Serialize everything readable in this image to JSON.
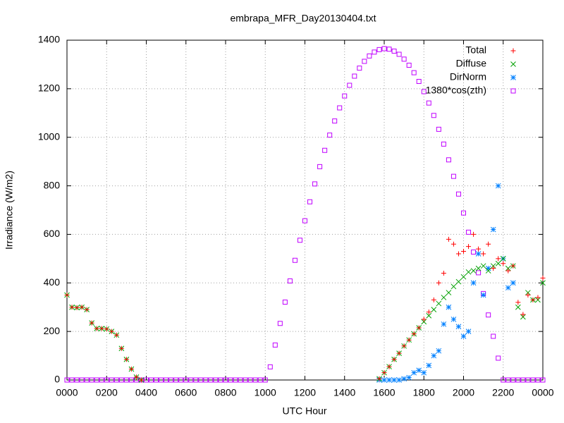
{
  "chart_data": {
    "type": "scatter",
    "title": "embrapa_MFR_Day20130404.txt",
    "x_label": "UTC Hour",
    "y_label": "Irradiance (W/m2)",
    "xlim": [
      0,
      24
    ],
    "ylim": [
      0,
      1400
    ],
    "xticks": [
      {
        "value": 0,
        "label": "0000"
      },
      {
        "value": 2,
        "label": "0200"
      },
      {
        "value": 4,
        "label": "0400"
      },
      {
        "value": 6,
        "label": "0600"
      },
      {
        "value": 8,
        "label": "0800"
      },
      {
        "value": 10,
        "label": "1000"
      },
      {
        "value": 12,
        "label": "1200"
      },
      {
        "value": 14,
        "label": "1400"
      },
      {
        "value": 16,
        "label": "1600"
      },
      {
        "value": 18,
        "label": "1800"
      },
      {
        "value": 20,
        "label": "2000"
      },
      {
        "value": 22,
        "label": "2200"
      },
      {
        "value": 24,
        "label": "0000"
      }
    ],
    "yticks": [
      0,
      200,
      400,
      600,
      800,
      1000,
      1200,
      1400
    ],
    "grid": true,
    "legend": "top-right",
    "x": [
      0,
      0.25,
      0.5,
      0.75,
      1,
      1.25,
      1.5,
      1.75,
      2,
      2.25,
      2.5,
      2.75,
      3,
      3.25,
      3.5,
      3.75,
      4,
      4.25,
      4.5,
      4.75,
      5,
      5.25,
      5.5,
      5.75,
      6,
      6.25,
      6.5,
      6.75,
      7,
      7.25,
      7.5,
      7.75,
      8,
      8.25,
      8.5,
      8.75,
      9,
      9.25,
      9.5,
      9.75,
      10,
      10.25,
      10.5,
      10.75,
      11,
      11.25,
      11.5,
      11.75,
      12,
      12.25,
      12.5,
      12.75,
      13,
      13.25,
      13.5,
      13.75,
      14,
      14.25,
      14.5,
      14.75,
      15,
      15.25,
      15.5,
      15.75,
      16,
      16.25,
      16.5,
      16.75,
      17,
      17.25,
      17.5,
      17.75,
      18,
      18.25,
      18.5,
      18.75,
      19,
      19.25,
      19.5,
      19.75,
      20,
      20.25,
      20.5,
      20.75,
      21,
      21.25,
      21.5,
      21.75,
      22,
      22.25,
      22.5,
      22.75,
      23,
      23.25,
      23.5,
      23.75,
      24
    ],
    "series": [
      {
        "name": "Total",
        "color": "#ff0000",
        "marker": "plus",
        "values": [
          350,
          300,
          298,
          300,
          290,
          235,
          212,
          212,
          210,
          200,
          185,
          130,
          85,
          45,
          12,
          0,
          null,
          null,
          null,
          null,
          null,
          null,
          null,
          null,
          null,
          null,
          null,
          null,
          null,
          null,
          null,
          null,
          null,
          null,
          null,
          null,
          null,
          null,
          null,
          null,
          null,
          null,
          null,
          null,
          null,
          null,
          null,
          null,
          null,
          null,
          null,
          null,
          null,
          null,
          null,
          null,
          null,
          null,
          null,
          null,
          null,
          null,
          null,
          5,
          30,
          55,
          85,
          110,
          140,
          165,
          190,
          215,
          250,
          280,
          330,
          400,
          440,
          580,
          560,
          520,
          530,
          550,
          600,
          540,
          520,
          560,
          460,
          500,
          480,
          450,
          470,
          320,
          270,
          350,
          330,
          340,
          420
        ]
      },
      {
        "name": "Diffuse",
        "color": "#00a000",
        "marker": "cross",
        "values": [
          350,
          300,
          298,
          300,
          290,
          235,
          212,
          212,
          210,
          200,
          185,
          130,
          85,
          45,
          12,
          0,
          null,
          null,
          null,
          null,
          null,
          null,
          null,
          null,
          null,
          null,
          null,
          null,
          null,
          null,
          null,
          null,
          null,
          null,
          null,
          null,
          null,
          null,
          null,
          null,
          null,
          null,
          null,
          null,
          null,
          null,
          null,
          null,
          null,
          null,
          null,
          null,
          null,
          null,
          null,
          null,
          null,
          null,
          null,
          null,
          null,
          null,
          null,
          5,
          30,
          55,
          85,
          110,
          140,
          165,
          190,
          215,
          240,
          265,
          290,
          315,
          340,
          360,
          385,
          405,
          425,
          445,
          450,
          460,
          470,
          450,
          470,
          480,
          500,
          460,
          470,
          300,
          260,
          360,
          330,
          330,
          400
        ]
      },
      {
        "name": "DirNorm",
        "color": "#0080ff",
        "marker": "star",
        "values": [
          null,
          null,
          null,
          null,
          null,
          null,
          null,
          null,
          null,
          null,
          null,
          null,
          null,
          null,
          null,
          null,
          null,
          null,
          null,
          null,
          null,
          null,
          null,
          null,
          null,
          null,
          null,
          null,
          null,
          null,
          null,
          null,
          null,
          null,
          null,
          null,
          null,
          null,
          null,
          null,
          null,
          null,
          null,
          null,
          null,
          null,
          null,
          null,
          null,
          null,
          null,
          null,
          null,
          null,
          null,
          null,
          null,
          null,
          null,
          null,
          null,
          null,
          null,
          0,
          0,
          0,
          0,
          0,
          5,
          10,
          30,
          40,
          30,
          60,
          100,
          120,
          230,
          300,
          250,
          220,
          180,
          200,
          400,
          520,
          350,
          460,
          620,
          800,
          500,
          380,
          400,
          null,
          null,
          null,
          null,
          null,
          null
        ]
      },
      {
        "name": "1380*cos(zth)",
        "color": "#c000ff",
        "marker": "square",
        "values": [
          0,
          0,
          0,
          0,
          0,
          0,
          0,
          0,
          0,
          0,
          0,
          0,
          0,
          0,
          0,
          0,
          0,
          0,
          0,
          0,
          0,
          0,
          0,
          0,
          0,
          0,
          0,
          0,
          0,
          0,
          0,
          0,
          0,
          0,
          0,
          0,
          0,
          0,
          0,
          0,
          0,
          54,
          144,
          233,
          321,
          408,
          493,
          576,
          656,
          734,
          808,
          879,
          946,
          1009,
          1067,
          1121,
          1170,
          1214,
          1252,
          1285,
          1313,
          1335,
          1351,
          1361,
          1365,
          1363,
          1355,
          1342,
          1322,
          1297,
          1266,
          1230,
          1188,
          1141,
          1090,
          1033,
          972,
          907,
          839,
          766,
          688,
          609,
          527,
          442,
          356,
          268,
          180,
          90,
          0,
          0,
          0,
          0,
          0,
          0,
          0,
          0,
          0
        ]
      }
    ]
  }
}
